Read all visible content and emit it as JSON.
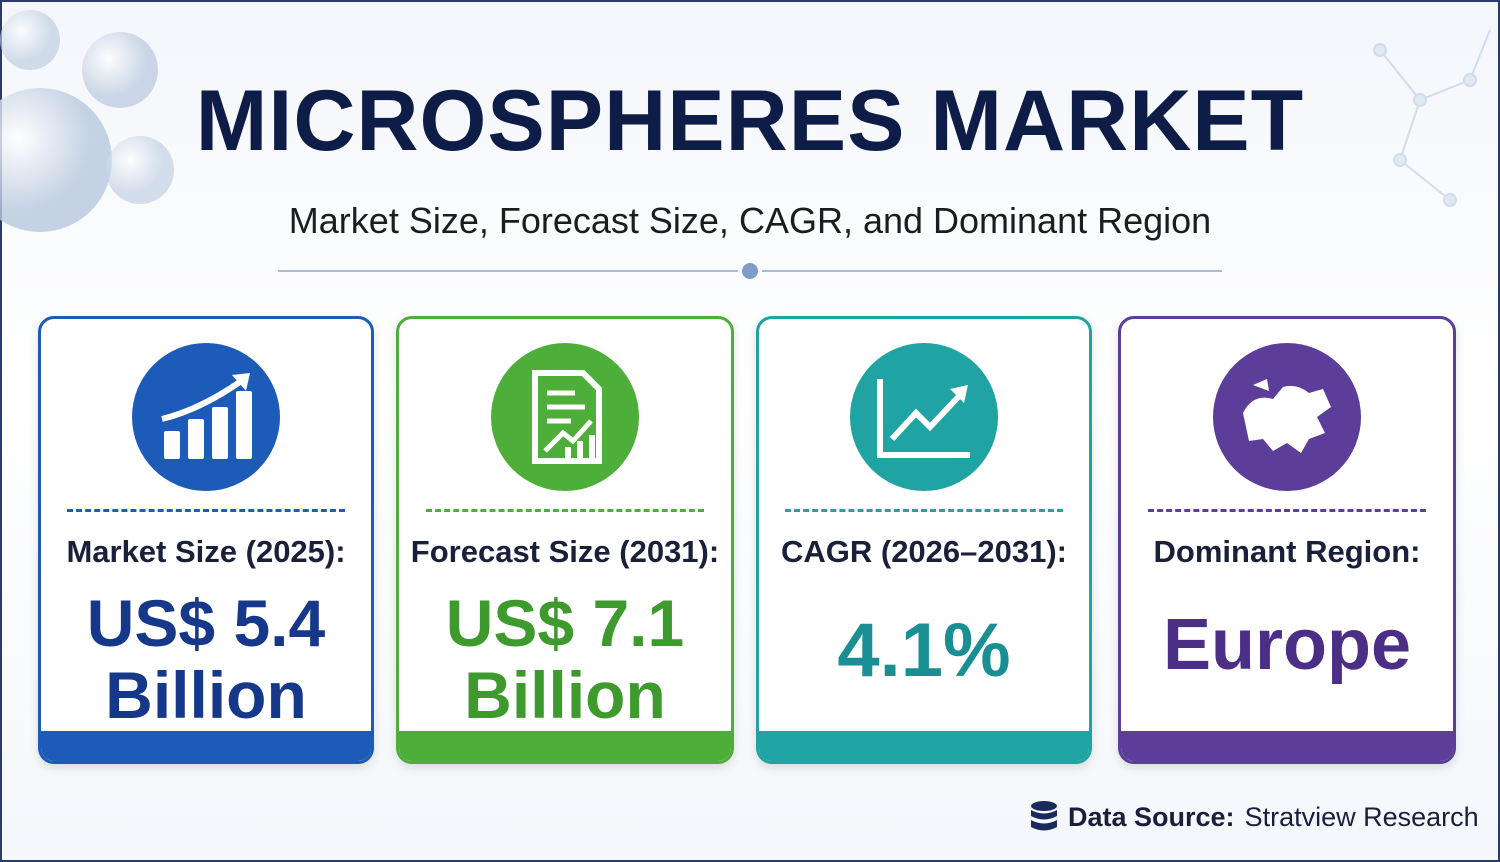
{
  "header": {
    "title": "MICROSPHERES MARKET",
    "subtitle": "Market Size, Forecast Size, CAGR, and Dominant Region"
  },
  "cards": [
    {
      "label": "Market Size (2025):",
      "value_lines": [
        "US$ 5.4",
        "Billion"
      ]
    },
    {
      "label": "Forecast Size (2031):",
      "value_lines": [
        "US$ 7.1",
        "Billion"
      ]
    },
    {
      "label": "CAGR (2026–2031):",
      "value_lines": [
        "4.1%"
      ]
    },
    {
      "label": "Dominant Region:",
      "value_lines": [
        "Europe"
      ]
    }
  ],
  "footer": {
    "source_label": "Data Source:",
    "source": "Stratview Research"
  }
}
